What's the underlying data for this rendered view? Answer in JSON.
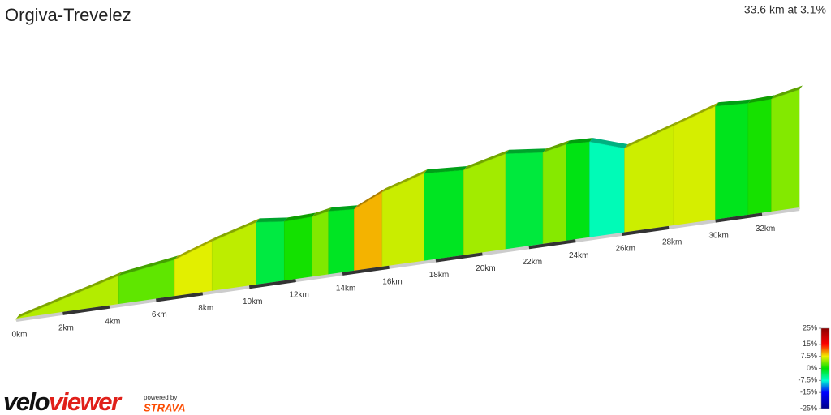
{
  "chart_data": {
    "type": "elevation-profile",
    "title": "Orgiva-Trevelez",
    "summary": "33.6 km at 3.1%",
    "x": [
      0,
      4.4,
      6.8,
      8.4,
      10.3,
      11.5,
      12.7,
      13.4,
      14.5,
      15.7,
      17.5,
      19.2,
      21.0,
      22.6,
      23.6,
      24.6,
      26.1,
      28.2,
      30.0,
      31.4,
      32.4,
      33.6
    ],
    "values": [
      454,
      700,
      771,
      884,
      996,
      968,
      975,
      1003,
      989,
      1102,
      1215,
      1194,
      1285,
      1250,
      1292,
      1285,
      1186,
      1320,
      1440,
      1426,
      1433,
      1482
    ],
    "xlim": [
      0,
      33.6
    ],
    "ylim": [
      440,
      1500
    ],
    "xticks": [
      {
        "value": 0,
        "label": "0km"
      },
      {
        "value": 2,
        "label": "2km"
      },
      {
        "value": 4,
        "label": "4km"
      },
      {
        "value": 6,
        "label": "6km"
      },
      {
        "value": 8,
        "label": "8km"
      },
      {
        "value": 10,
        "label": "10km"
      },
      {
        "value": 12,
        "label": "12km"
      },
      {
        "value": 14,
        "label": "14km"
      },
      {
        "value": 16,
        "label": "16km"
      },
      {
        "value": 18,
        "label": "18km"
      },
      {
        "value": 20,
        "label": "20km"
      },
      {
        "value": 22,
        "label": "22km"
      },
      {
        "value": 24,
        "label": "24km"
      },
      {
        "value": 26,
        "label": "26km"
      },
      {
        "value": 28,
        "label": "28km"
      },
      {
        "value": 30,
        "label": "30km"
      },
      {
        "value": 32,
        "label": "32km"
      }
    ],
    "colorbar": {
      "ticks": [
        {
          "value": 25,
          "label": "25%"
        },
        {
          "value": 15,
          "label": "15%"
        },
        {
          "value": 7.5,
          "label": "7.5%"
        },
        {
          "value": 0,
          "label": "0%"
        },
        {
          "value": -7.5,
          "label": "-7.5%"
        },
        {
          "value": -15,
          "label": "-15%"
        },
        {
          "value": -25,
          "label": "-25%"
        }
      ],
      "colors": [
        "#8b0000",
        "#ff0000",
        "#f0f000",
        "#00e000",
        "#00ffd0",
        "#0000ff",
        "#00008b"
      ]
    }
  },
  "branding": {
    "logo_left": "velo",
    "logo_right": "viewer",
    "powered": "powered by",
    "strava": "STRAVA"
  }
}
